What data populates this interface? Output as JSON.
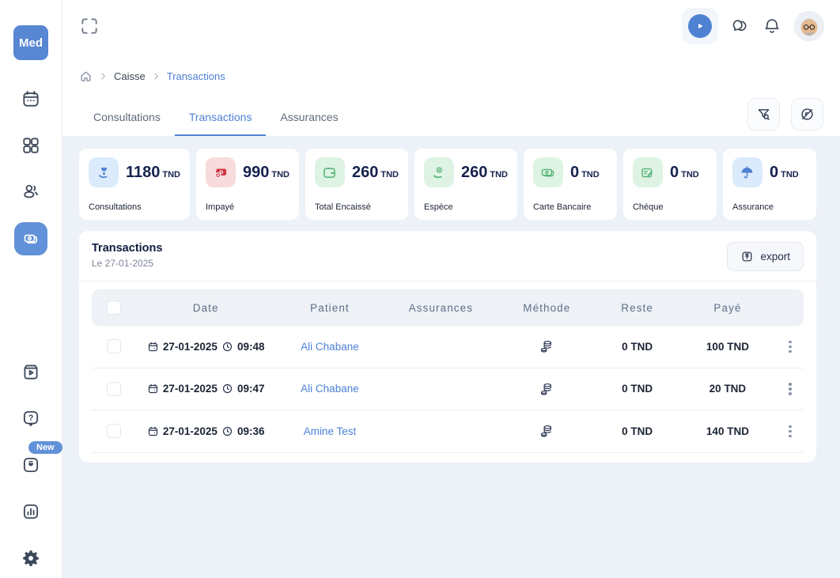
{
  "brand": {
    "name": "Med",
    "accent": "#4e81d2"
  },
  "sidebar": {
    "new_badge": "New",
    "items": [
      "calendar",
      "dashboard",
      "patients",
      "caisse",
      "videos",
      "help",
      "whats-new",
      "statistics",
      "settings"
    ],
    "active_item": "caisse"
  },
  "breadcrumb": {
    "items": [
      {
        "label": "Caisse",
        "active": false
      },
      {
        "label": "Transactions",
        "active": true
      }
    ]
  },
  "tabs": [
    {
      "label": "Consultations",
      "active": false
    },
    {
      "label": "Transactions",
      "active": true
    },
    {
      "label": "Assurances",
      "active": false
    }
  ],
  "stats": [
    {
      "label": "Consultations",
      "value": "1180",
      "unit": "TND",
      "icon": "hand-heart-icon",
      "icon_color": "#4e81d2",
      "icon_bg": "#dcebfb"
    },
    {
      "label": "Impayé",
      "value": "990",
      "unit": "TND",
      "icon": "unpaid-icon",
      "icon_color": "#d03540",
      "icon_bg": "#f8dbdc"
    },
    {
      "label": "Total Encaissé",
      "value": "260",
      "unit": "TND",
      "icon": "wallet-icon",
      "icon_color": "#56b377",
      "icon_bg": "#def3e4"
    },
    {
      "label": "Espèce",
      "value": "260",
      "unit": "TND",
      "icon": "cash-hand-icon",
      "icon_color": "#56b377",
      "icon_bg": "#def3e4"
    },
    {
      "label": "Carte Bancaire",
      "value": "0",
      "unit": "TND",
      "icon": "banknote-icon",
      "icon_color": "#56b377",
      "icon_bg": "#def3e4"
    },
    {
      "label": "Chéque",
      "value": "0",
      "unit": "TND",
      "icon": "cheque-icon",
      "icon_color": "#56b377",
      "icon_bg": "#def3e4"
    },
    {
      "label": "Assurance",
      "value": "0",
      "unit": "TND",
      "icon": "umbrella-icon",
      "icon_color": "#4e81d2",
      "icon_bg": "#dcebfb"
    }
  ],
  "transactions": {
    "title": "Transactions",
    "subtitle": "Le 27-01-2025",
    "export_label": "export",
    "columns": [
      "Date",
      "Patient",
      "Assurances",
      "Méthode",
      "Reste",
      "Payé"
    ],
    "rows": [
      {
        "date": "27-01-2025",
        "time": "09:48",
        "patient": "Ali Chabane",
        "assurance": "",
        "method_icon": "coins-icon",
        "reste": "0 TND",
        "paye": "100 TND"
      },
      {
        "date": "27-01-2025",
        "time": "09:47",
        "patient": "Ali Chabane",
        "assurance": "",
        "method_icon": "coins-icon",
        "reste": "0 TND",
        "paye": "20 TND"
      },
      {
        "date": "27-01-2025",
        "time": "09:36",
        "patient": "Amine Test",
        "assurance": "",
        "method_icon": "coins-icon",
        "reste": "0 TND",
        "paye": "140 TND"
      }
    ]
  }
}
